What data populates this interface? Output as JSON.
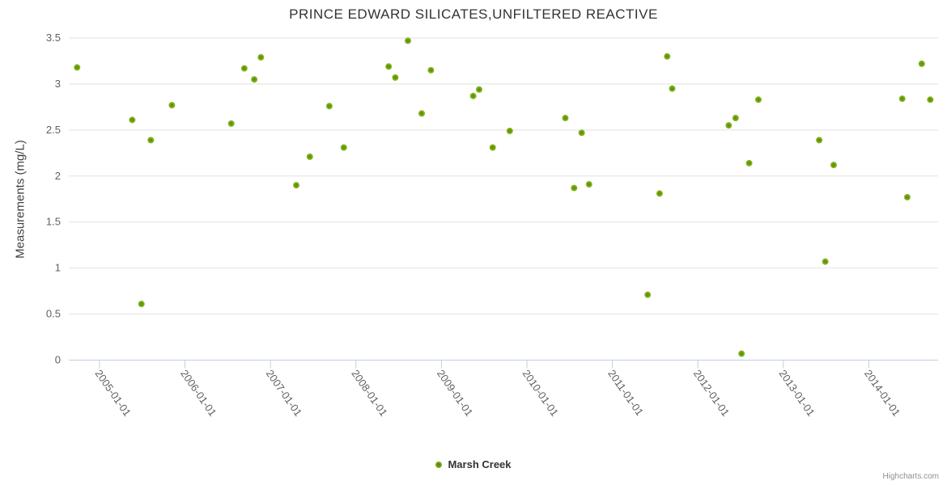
{
  "chart": {
    "title": "PRINCE EDWARD SILICATES,UNFILTERED REACTIVE",
    "y_axis_title": "Measurements (mg/L)",
    "legend": {
      "label": "Marsh Creek",
      "marker": "circle-icon"
    },
    "credits": "Highcharts.com"
  },
  "colors": {
    "marker_edge": "#8bbc21",
    "marker_core": "#4e7d07",
    "grid_line": "#e2e2e2",
    "axis_line": "#c0d0e0",
    "title_text": "#333333",
    "tick_text": "#606060",
    "axis_title_text": "#3f3f3f",
    "legend_text": "#333333",
    "credits_text": "#909090",
    "background": "#ffffff"
  },
  "chart_data": {
    "type": "scatter",
    "title": "PRINCE EDWARD SILICATES,UNFILTERED REACTIVE",
    "xlabel": "",
    "ylabel": "Measurements (mg/L)",
    "legend_position": "bottom-center",
    "grid": "horizontal",
    "ylim": [
      0,
      3.5
    ],
    "y_ticks": [
      0,
      0.5,
      1,
      1.5,
      2,
      2.5,
      3,
      3.5
    ],
    "x_ticks": [
      "2005-01-01",
      "2006-01-01",
      "2007-01-01",
      "2008-01-01",
      "2009-01-01",
      "2010-01-01",
      "2011-01-01",
      "2012-01-01",
      "2013-01-01",
      "2014-01-01"
    ],
    "xlim": [
      "2004-08-22",
      "2014-10-23"
    ],
    "series": [
      {
        "name": "Marsh Creek",
        "points": [
          {
            "date": "2004-09-27",
            "value": 3.18
          },
          {
            "date": "2005-05-19",
            "value": 2.61
          },
          {
            "date": "2005-06-28",
            "value": 0.61
          },
          {
            "date": "2005-08-07",
            "value": 2.39
          },
          {
            "date": "2005-11-06",
            "value": 2.77
          },
          {
            "date": "2006-07-16",
            "value": 2.57
          },
          {
            "date": "2006-09-11",
            "value": 3.17
          },
          {
            "date": "2006-10-23",
            "value": 3.05
          },
          {
            "date": "2006-11-21",
            "value": 3.29
          },
          {
            "date": "2007-04-20",
            "value": 1.9
          },
          {
            "date": "2007-06-17",
            "value": 2.21
          },
          {
            "date": "2007-09-09",
            "value": 2.76
          },
          {
            "date": "2007-11-10",
            "value": 2.31
          },
          {
            "date": "2008-05-19",
            "value": 3.19
          },
          {
            "date": "2008-06-17",
            "value": 3.07
          },
          {
            "date": "2008-08-10",
            "value": 3.47
          },
          {
            "date": "2008-10-08",
            "value": 2.68
          },
          {
            "date": "2008-11-17",
            "value": 3.15
          },
          {
            "date": "2009-05-15",
            "value": 2.87
          },
          {
            "date": "2009-06-10",
            "value": 2.94
          },
          {
            "date": "2009-08-07",
            "value": 2.31
          },
          {
            "date": "2009-10-19",
            "value": 2.49
          },
          {
            "date": "2010-06-13",
            "value": 2.63
          },
          {
            "date": "2010-07-20",
            "value": 1.87
          },
          {
            "date": "2010-08-22",
            "value": 2.47
          },
          {
            "date": "2010-09-23",
            "value": 1.91
          },
          {
            "date": "2011-05-30",
            "value": 0.71
          },
          {
            "date": "2011-07-20",
            "value": 1.81
          },
          {
            "date": "2011-08-22",
            "value": 3.3
          },
          {
            "date": "2011-09-13",
            "value": 2.95
          },
          {
            "date": "2012-05-11",
            "value": 2.55
          },
          {
            "date": "2012-06-10",
            "value": 2.63
          },
          {
            "date": "2012-07-05",
            "value": 0.07
          },
          {
            "date": "2012-08-07",
            "value": 2.14
          },
          {
            "date": "2012-09-16",
            "value": 2.83
          },
          {
            "date": "2013-06-02",
            "value": 2.39
          },
          {
            "date": "2013-06-28",
            "value": 1.07
          },
          {
            "date": "2013-08-03",
            "value": 2.12
          },
          {
            "date": "2014-05-22",
            "value": 2.84
          },
          {
            "date": "2014-06-13",
            "value": 1.77
          },
          {
            "date": "2014-08-14",
            "value": 3.22
          },
          {
            "date": "2014-09-20",
            "value": 2.83
          }
        ]
      }
    ]
  }
}
